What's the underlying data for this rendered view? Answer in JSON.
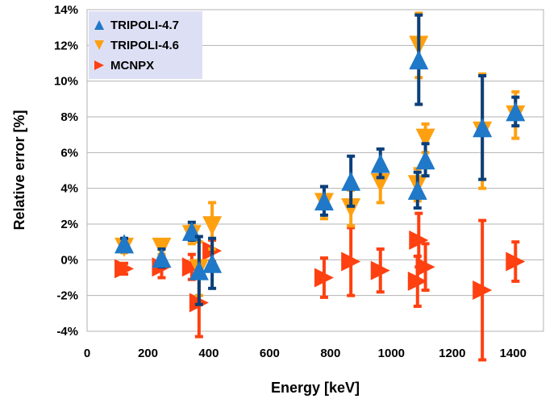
{
  "chart_data": {
    "type": "scatter",
    "title": "",
    "xlabel": "Energy [keV]",
    "ylabel": "Relative error [%]",
    "xlim": [
      0,
      1500
    ],
    "ylim": [
      -4,
      14
    ],
    "x_ticks": [
      0,
      200,
      400,
      600,
      800,
      1000,
      1200,
      1400
    ],
    "y_ticks": [
      -4,
      -2,
      0,
      2,
      4,
      6,
      8,
      10,
      12,
      14
    ],
    "x_tick_labels": [
      "0",
      "200",
      "400",
      "600",
      "800",
      "1000",
      "1200",
      "1400"
    ],
    "y_tick_labels": [
      "-4%",
      "-2%",
      "0%",
      "2%",
      "4%",
      "6%",
      "8%",
      "10%",
      "12%",
      "14%"
    ],
    "grid": true,
    "legend_position": "top-left",
    "series": [
      {
        "name": "TRIPOLI-4.7",
        "marker": "triangle-up",
        "color": "#1f78c8",
        "error_bar_color": "#0b3f7a",
        "points": [
          {
            "x": 122,
            "y": 0.9,
            "err": 0.3
          },
          {
            "x": 245,
            "y": 0.1,
            "err": 0.5
          },
          {
            "x": 344,
            "y": 1.6,
            "err": 0.5
          },
          {
            "x": 368,
            "y": -0.6,
            "err": 1.9
          },
          {
            "x": 411,
            "y": -0.2,
            "err": 1.4
          },
          {
            "x": 779,
            "y": 3.3,
            "err": 0.8
          },
          {
            "x": 867,
            "y": 4.4,
            "err": 1.4
          },
          {
            "x": 964,
            "y": 5.4,
            "err": 0.8
          },
          {
            "x": 1086,
            "y": 3.9,
            "err": 1.0
          },
          {
            "x": 1090,
            "y": 11.2,
            "err": 2.5
          },
          {
            "x": 1112,
            "y": 5.6,
            "err": 0.9
          },
          {
            "x": 1299,
            "y": 7.4,
            "err": 2.9
          },
          {
            "x": 1408,
            "y": 8.3,
            "err": 0.8
          }
        ]
      },
      {
        "name": "TRIPOLI-4.6",
        "marker": "triangle-down",
        "color": "#ffa010",
        "error_bar_color": "#ffa010",
        "points": [
          {
            "x": 122,
            "y": 0.7,
            "err": 0.3
          },
          {
            "x": 245,
            "y": 0.7,
            "err": 0.4
          },
          {
            "x": 344,
            "y": 1.4,
            "err": 0.5
          },
          {
            "x": 368,
            "y": -0.5,
            "err": 1.5
          },
          {
            "x": 411,
            "y": 1.9,
            "err": 1.3
          },
          {
            "x": 779,
            "y": 3.2,
            "err": 0.9
          },
          {
            "x": 867,
            "y": 2.9,
            "err": 1.0
          },
          {
            "x": 964,
            "y": 4.3,
            "err": 1.1
          },
          {
            "x": 1086,
            "y": 4.2,
            "err": 0.9
          },
          {
            "x": 1090,
            "y": 12.0,
            "err": 1.8
          },
          {
            "x": 1112,
            "y": 6.8,
            "err": 0.8
          },
          {
            "x": 1299,
            "y": 7.2,
            "err": 3.2
          },
          {
            "x": 1408,
            "y": 8.1,
            "err": 1.3
          }
        ]
      },
      {
        "name": "MCNPX",
        "marker": "triangle-right",
        "color": "#ff4010",
        "error_bar_color": "#ff4010",
        "points": [
          {
            "x": 122,
            "y": -0.5,
            "err": 0.3
          },
          {
            "x": 245,
            "y": -0.4,
            "err": 0.6
          },
          {
            "x": 344,
            "y": -0.4,
            "err": 0.7
          },
          {
            "x": 368,
            "y": -2.4,
            "err": 1.9
          },
          {
            "x": 411,
            "y": 0.5,
            "err": 0.6
          },
          {
            "x": 779,
            "y": -1.0,
            "err": 1.1
          },
          {
            "x": 867,
            "y": -0.1,
            "err": 1.9
          },
          {
            "x": 964,
            "y": -0.6,
            "err": 1.2
          },
          {
            "x": 1086,
            "y": -1.2,
            "err": 1.4
          },
          {
            "x": 1090,
            "y": 1.1,
            "err": 1.5
          },
          {
            "x": 1112,
            "y": -0.4,
            "err": 1.3
          },
          {
            "x": 1299,
            "y": -1.7,
            "err": 3.9
          },
          {
            "x": 1408,
            "y": -0.1,
            "err": 1.1
          }
        ]
      }
    ]
  }
}
